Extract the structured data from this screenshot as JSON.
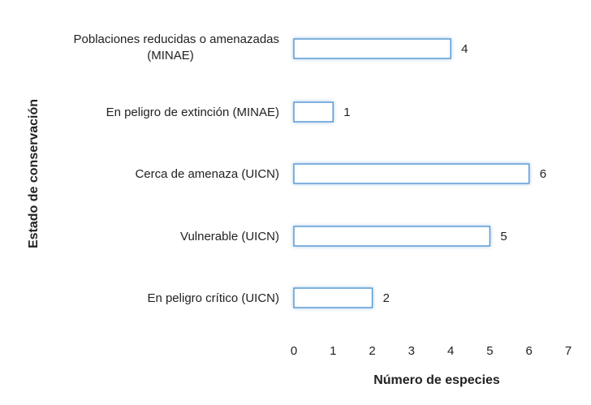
{
  "chart_data": {
    "type": "bar",
    "orientation": "horizontal",
    "categories": [
      [
        "Poblaciones reducidas o amenazadas",
        "(MINAE)"
      ],
      [
        "En peligro de extinción (MINAE)"
      ],
      [
        "Cerca de amenaza (UICN)"
      ],
      [
        "Vulnerable (UICN)"
      ],
      [
        "En peligro crítico (UICN)"
      ]
    ],
    "values": [
      4,
      1,
      6,
      5,
      2
    ],
    "value_labels": [
      "4",
      "1",
      "6",
      "5",
      "2"
    ],
    "xlabel": "Número de especies",
    "ylabel": "Estado de conservación",
    "xlim": [
      0,
      7
    ],
    "xticks": [
      "0",
      "1",
      "2",
      "3",
      "4",
      "5",
      "6",
      "7"
    ],
    "grid": false,
    "legend": "none",
    "colors": {
      "bar_fill": "#ffffff",
      "bar_border": "#5b9bd5",
      "bar_glow": "#9dc3e6"
    }
  }
}
